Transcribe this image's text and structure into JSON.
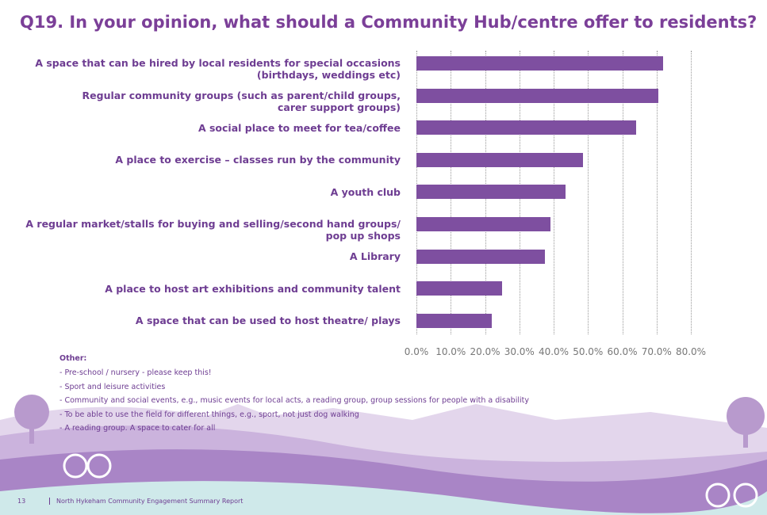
{
  "chart_data": {
    "type": "bar",
    "orientation": "horizontal",
    "title": "Q19. In your opinion, what should a Community Hub/centre offer to residents?",
    "categories": [
      "A space that can be hired by local residents for special occasions\n(birthdays, weddings etc)",
      "Regular community groups (such as parent/child groups,\ncarer support groups)",
      "A social place to meet for tea/coffee",
      "A place to exercise – classes run by the community",
      "A youth club",
      "A regular market/stalls for buying and selling/second hand groups/\npop up shops",
      "A Library",
      "A place to host art exhibitions and community talent",
      "A space that can be used to host theatre/ plays"
    ],
    "values": [
      72,
      70.5,
      64,
      48.5,
      43.5,
      39,
      37.5,
      25,
      22
    ],
    "color": "#7e4fa0",
    "xlim": [
      0,
      80
    ],
    "xticks": [
      {
        "value": 0,
        "label": "0.0%"
      },
      {
        "value": 10,
        "label": "10.0%"
      },
      {
        "value": 20,
        "label": "20.0%"
      },
      {
        "value": 30,
        "label": "30.0%"
      },
      {
        "value": 40,
        "label": "40.0%"
      },
      {
        "value": 50,
        "label": "50.0%"
      },
      {
        "value": 60,
        "label": "60.0%"
      },
      {
        "value": 70,
        "label": "70.0%"
      },
      {
        "value": 80,
        "label": "80.0%"
      }
    ],
    "grid": true
  },
  "other": {
    "heading": "Other:",
    "items": [
      "- Pre-school / nursery - please keep this!",
      "- Sport and leisure activities",
      "- Community and social events, e.g., music events for local acts, a reading group, group sessions for people with a disability",
      "- To be able to use the field for different things, e.g., sport, not just dog walking",
      "- A reading group. A space to cater for all"
    ]
  },
  "footer": {
    "page": "13",
    "report": "North Hykeham Community Engagement Summary Report"
  }
}
